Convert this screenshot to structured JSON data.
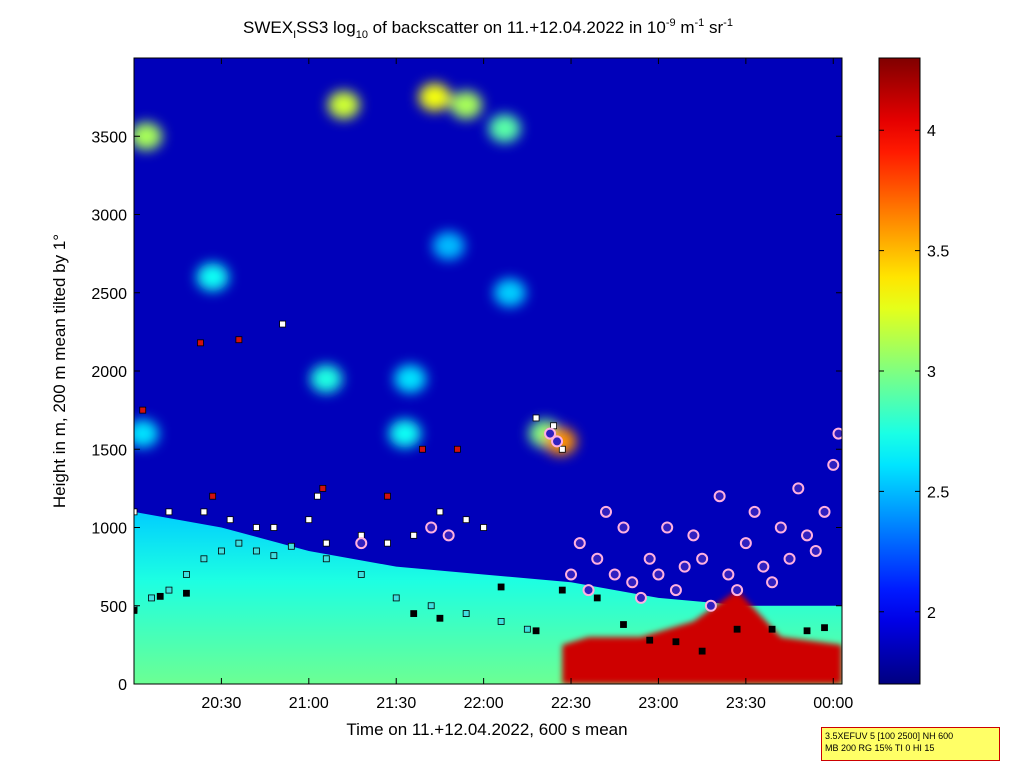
{
  "chart_data": {
    "type": "heatmap",
    "title": {
      "part1": "SWEX",
      "sub1": "I",
      "part2": "SS3 log",
      "sub2": "10",
      "part3": " of backscatter on 11.+12.04.2022 in 10",
      "sup1": "-9",
      "part4": " m",
      "sup2": "-1",
      "part5": " sr",
      "sup3": "-1"
    },
    "xlabel": "Time on 11.+12.04.2022, 600 s mean",
    "ylabel": "Height in m, 200 m mean tilted by 1°",
    "x_ticks": [
      "20:30",
      "21:00",
      "21:30",
      "22:00",
      "22:30",
      "23:00",
      "23:30",
      "00:00"
    ],
    "x_tick_hours": [
      20.5,
      21.0,
      21.5,
      22.0,
      22.5,
      23.0,
      23.5,
      24.0
    ],
    "xlim_hours": [
      20.0,
      24.05
    ],
    "y_ticks": [
      "0",
      "500",
      "1000",
      "1500",
      "2000",
      "2500",
      "3000",
      "3500"
    ],
    "y_tick_values": [
      0,
      500,
      1000,
      1500,
      2000,
      2500,
      3000,
      3500
    ],
    "ylim": [
      0,
      4000
    ],
    "colorbar": {
      "ticks": [
        "2",
        "2.5",
        "3",
        "3.5",
        "4"
      ],
      "tick_values": [
        2,
        2.5,
        3,
        3.5,
        4
      ],
      "range": [
        1.7,
        4.3
      ],
      "colormap": "jet"
    },
    "background_value": 1.85,
    "mixed_layer": {
      "hours": [
        20.0,
        20.5,
        21.0,
        21.5,
        22.0,
        22.5,
        23.0,
        23.5,
        24.05
      ],
      "top_heights": [
        1100,
        1000,
        850,
        750,
        700,
        650,
        550,
        500,
        500
      ],
      "value_near_ground": 2.95,
      "value_near_top": 2.55
    },
    "strong_layer": {
      "start_hour": 22.45,
      "end_hour": 24.05,
      "top_heights": [
        250,
        300,
        300,
        400,
        600,
        300,
        250
      ],
      "top_hours": [
        22.45,
        22.6,
        22.9,
        23.2,
        23.45,
        23.7,
        24.05
      ],
      "value": 4.1
    },
    "cloud_patches": [
      {
        "hour": 20.07,
        "height": 3500,
        "value": 3.1
      },
      {
        "hour": 20.45,
        "height": 2600,
        "value": 2.7
      },
      {
        "hour": 21.1,
        "height": 1950,
        "value": 2.75
      },
      {
        "hour": 21.2,
        "height": 3700,
        "value": 3.2
      },
      {
        "hour": 21.72,
        "height": 3750,
        "value": 3.3
      },
      {
        "hour": 21.9,
        "height": 3700,
        "value": 3.1
      },
      {
        "hour": 22.12,
        "height": 3550,
        "value": 2.9
      },
      {
        "hour": 21.55,
        "height": 1600,
        "value": 2.7
      },
      {
        "hour": 21.58,
        "height": 1950,
        "value": 2.6
      },
      {
        "hour": 22.35,
        "height": 1600,
        "value": 3.0
      },
      {
        "hour": 22.44,
        "height": 1550,
        "value": 3.6
      },
      {
        "hour": 20.05,
        "height": 1600,
        "value": 2.6
      },
      {
        "hour": 21.8,
        "height": 2800,
        "value": 2.5
      },
      {
        "hour": 22.15,
        "height": 2500,
        "value": 2.55
      }
    ],
    "series": [
      {
        "marker": "red square",
        "hours": [
          20.05,
          20.38,
          20.6,
          20.45,
          21.08,
          21.45,
          21.65,
          21.85
        ],
        "heights": [
          1750,
          2180,
          2200,
          1200,
          1250,
          1200,
          1500,
          1500
        ]
      },
      {
        "marker": "white square",
        "hours": [
          20.0,
          20.2,
          20.4,
          20.55,
          20.7,
          20.8,
          21.0,
          21.1,
          21.3,
          21.45,
          21.6,
          21.75,
          21.9,
          22.0,
          22.3,
          22.4,
          22.45,
          20.85,
          21.05
        ],
        "heights": [
          1100,
          1100,
          1100,
          1050,
          1000,
          1000,
          1050,
          900,
          950,
          900,
          950,
          1100,
          1050,
          1000,
          1700,
          1650,
          1500,
          2300,
          1200
        ]
      },
      {
        "marker": "cyan square",
        "hours": [
          20.0,
          20.1,
          20.2,
          20.3,
          20.4,
          20.5,
          20.6,
          20.7,
          20.8,
          20.9,
          21.1,
          21.3,
          21.5,
          21.7,
          21.9,
          22.1,
          22.25
        ],
        "heights": [
          480,
          550,
          600,
          700,
          800,
          850,
          900,
          850,
          820,
          880,
          800,
          700,
          550,
          500,
          450,
          400,
          350
        ]
      },
      {
        "marker": "black square",
        "hours": [
          20.0,
          20.15,
          20.3,
          21.6,
          21.75,
          22.1,
          22.3,
          22.45,
          22.65,
          22.8,
          22.95,
          23.1,
          23.25,
          23.45,
          23.65,
          23.85,
          23.95
        ],
        "heights": [
          470,
          560,
          580,
          450,
          420,
          620,
          340,
          600,
          550,
          380,
          280,
          270,
          210,
          350,
          350,
          340,
          360
        ]
      },
      {
        "marker": "purple circle",
        "hours": [
          22.5,
          22.55,
          22.6,
          22.65,
          22.7,
          22.75,
          22.8,
          22.85,
          22.9,
          22.95,
          23.0,
          23.05,
          23.1,
          23.15,
          23.2,
          23.25,
          23.3,
          23.35,
          23.4,
          23.45,
          23.5,
          23.55,
          23.6,
          23.65,
          23.7,
          23.75,
          23.8,
          23.85,
          23.9,
          23.95,
          24.0,
          24.03,
          22.38,
          22.42,
          21.7,
          21.8,
          21.3
        ],
        "heights": [
          700,
          900,
          600,
          800,
          1100,
          700,
          1000,
          650,
          550,
          800,
          700,
          1000,
          600,
          750,
          950,
          800,
          500,
          1200,
          700,
          600,
          900,
          1100,
          750,
          650,
          1000,
          800,
          1250,
          950,
          850,
          1100,
          1400,
          1600,
          1600,
          1550,
          1000,
          950,
          900
        ]
      }
    ]
  },
  "info_box": {
    "line1": "3.5XEFUV 5 [100 2500] NH 600",
    "line2": "MB 200 RG 15% TI 0 HI 15"
  }
}
